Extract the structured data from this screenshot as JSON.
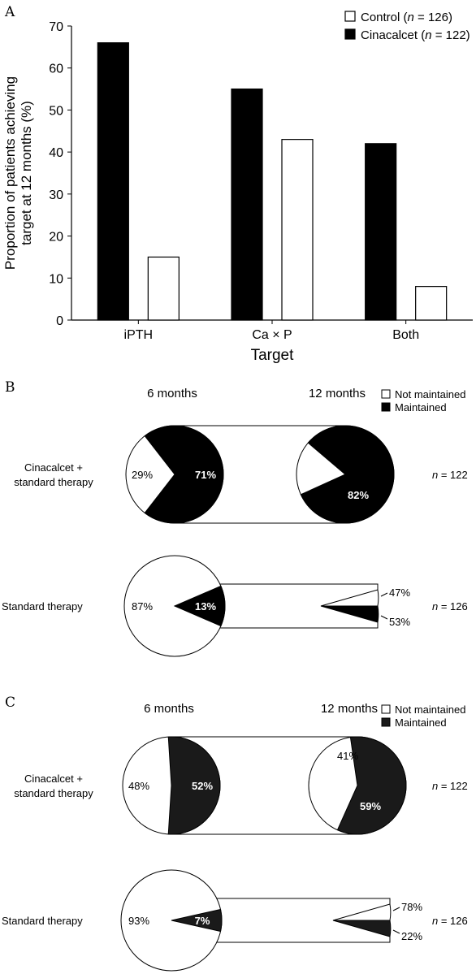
{
  "chart_data": [
    {
      "panel_label": "A",
      "type": "bar",
      "ylabel_line1": "Proportion of patients achieving",
      "ylabel_line2": "target at 12 months (%)",
      "xlabel": "Target",
      "ylim": [
        0,
        70
      ],
      "yticks": [
        0,
        10,
        20,
        30,
        40,
        50,
        60,
        70
      ],
      "categories": [
        "iPTH",
        "Ca × P",
        "Both"
      ],
      "series": [
        {
          "name": "Cinacalcet",
          "n_text": "n",
          "n_value": " = 122)",
          "values": [
            66,
            55,
            42
          ],
          "color": "#000000"
        },
        {
          "name": "Control",
          "n_text": "n",
          "n_value": " = 126)",
          "values": [
            15,
            43,
            8
          ],
          "color": "#ffffff"
        }
      ],
      "legend_position": "top-right"
    },
    {
      "panel_label": "B",
      "type": "pie",
      "timepoints": [
        "6 months",
        "12 months"
      ],
      "legend": [
        {
          "label": "Not maintained",
          "color": "#ffffff"
        },
        {
          "label": "Maintained",
          "color": "#000000"
        }
      ],
      "groups": [
        {
          "label_line1": "Cinacalcet +",
          "label_line2": "standard therapy",
          "n_label": "n",
          "n_value": " = 122",
          "six_months": {
            "maintained": 71,
            "not_maintained": 29,
            "maintained_label": "71%",
            "not_maintained_label": "29%"
          },
          "twelve_months": {
            "maintained": 82,
            "not_maintained": 18,
            "maintained_label": "82%",
            "not_maintained_label": "18%"
          }
        },
        {
          "label_line1": "Standard therapy",
          "label_line2": "",
          "n_label": "n",
          "n_value": " = 126",
          "six_months": {
            "maintained": 13,
            "not_maintained": 87,
            "maintained_label": "13%",
            "not_maintained_label": "87%"
          },
          "twelve_months": {
            "maintained": 53,
            "not_maintained": 47,
            "maintained_label": "53%",
            "not_maintained_label": "47%"
          }
        }
      ]
    },
    {
      "panel_label": "C",
      "type": "pie",
      "timepoints": [
        "6 months",
        "12 months"
      ],
      "legend": [
        {
          "label": "Not maintained",
          "color": "#ffffff"
        },
        {
          "label": "Maintained",
          "color": "#1a1a1a"
        }
      ],
      "groups": [
        {
          "label_line1": "Cinacalcet +",
          "label_line2": "standard therapy",
          "n_label": "n",
          "n_value": " = 122",
          "six_months": {
            "maintained": 52,
            "not_maintained": 48,
            "maintained_label": "52%",
            "not_maintained_label": "48%"
          },
          "twelve_months": {
            "maintained": 59,
            "not_maintained": 41,
            "maintained_label": "59%",
            "not_maintained_label": "41%"
          }
        },
        {
          "label_line1": "Standard therapy",
          "label_line2": "",
          "n_label": "n",
          "n_value": " = 126",
          "six_months": {
            "maintained": 7,
            "not_maintained": 93,
            "maintained_label": "7%",
            "not_maintained_label": "93%"
          },
          "twelve_months": {
            "maintained": 22,
            "not_maintained": 78,
            "maintained_label": "22%",
            "not_maintained_label": "78%"
          }
        }
      ]
    }
  ]
}
